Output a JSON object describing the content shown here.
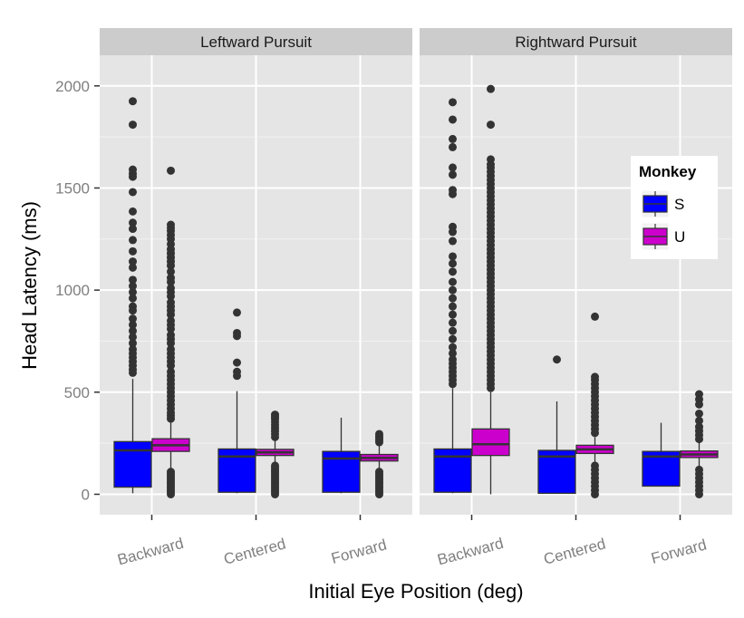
{
  "chart_data": {
    "type": "boxplot",
    "xlabel": "Initial Eye Position (deg)",
    "ylabel": "Head Latency (ms)",
    "ylim": [
      -100,
      2150
    ],
    "yticks": [
      0,
      500,
      1000,
      1500,
      2000
    ],
    "grid": true,
    "categories": [
      "Backward",
      "Centered",
      "Forward"
    ],
    "legend": {
      "title": "Monkey",
      "placement": "inside right panel, upper-right",
      "entries": [
        {
          "name": "S",
          "color": "#0000FF"
        },
        {
          "name": "U",
          "color": "#CC00CC"
        }
      ]
    },
    "panels": [
      {
        "title": "Leftward Pursuit",
        "boxes": [
          {
            "category": "Backward",
            "series": "S",
            "min": 5,
            "q1": 35,
            "median": 215,
            "q3": 258,
            "max": 565,
            "outliers": [
              1925,
              1810,
              1590,
              1570,
              1555,
              1480,
              1385,
              1330,
              1300,
              1245,
              1190,
              1140,
              1110,
              1050,
              1020,
              990,
              960,
              920,
              900,
              860,
              830,
              800,
              770,
              740,
              710,
              690,
              670,
              650,
              630,
              610,
              595
            ]
          },
          {
            "category": "Backward",
            "series": "U",
            "min": 120,
            "q1": 210,
            "median": 240,
            "q3": 272,
            "max": 360,
            "outliers": [
              1585,
              1320,
              1305,
              1290,
              1270,
              1250,
              1225,
              1200,
              1180,
              1160,
              1140,
              1120,
              1090,
              1060,
              1040,
              1010,
              990,
              970,
              940,
              920,
              900,
              880,
              850,
              830,
              810,
              780,
              760,
              740,
              710,
              690,
              670,
              650,
              630,
              600,
              580,
              560,
              540,
              520,
              500,
              480,
              460,
              440,
              420,
              400,
              385,
              370,
              110,
              100,
              90,
              80,
              70,
              60,
              50,
              40,
              30,
              20,
              10,
              0
            ]
          },
          {
            "category": "Centered",
            "series": "S",
            "min": 5,
            "q1": 10,
            "median": 185,
            "q3": 222,
            "max": 505,
            "outliers": [
              890,
              790,
              775,
              645,
              600,
              580
            ]
          },
          {
            "category": "Centered",
            "series": "U",
            "min": 150,
            "q1": 190,
            "median": 205,
            "q3": 220,
            "max": 265,
            "outliers": [
              390,
              380,
              370,
              355,
              340,
              325,
              310,
              295,
              280,
              140,
              130,
              120,
              110,
              100,
              90,
              80,
              70,
              60,
              50,
              40,
              30,
              20,
              10,
              0
            ]
          },
          {
            "category": "Forward",
            "series": "S",
            "min": 5,
            "q1": 10,
            "median": 175,
            "q3": 210,
            "max": 375,
            "outliers": []
          },
          {
            "category": "Forward",
            "series": "U",
            "min": 120,
            "q1": 163,
            "median": 178,
            "q3": 195,
            "max": 240,
            "outliers": [
              295,
              285,
              275,
              265,
              255,
              110,
              100,
              90,
              80,
              70,
              60,
              50,
              40,
              30,
              20,
              10,
              0
            ]
          }
        ]
      },
      {
        "title": "Rightward Pursuit",
        "boxes": [
          {
            "category": "Backward",
            "series": "S",
            "min": 5,
            "q1": 10,
            "median": 185,
            "q3": 222,
            "max": 520,
            "outliers": [
              1920,
              1835,
              1740,
              1700,
              1600,
              1565,
              1490,
              1470,
              1310,
              1285,
              1240,
              1165,
              1130,
              1090,
              1040,
              1000,
              960,
              920,
              880,
              840,
              800,
              760,
              720,
              690,
              660,
              640,
              620,
              600,
              580,
              560,
              540
            ]
          },
          {
            "category": "Backward",
            "series": "U",
            "min": 0,
            "q1": 190,
            "median": 245,
            "q3": 320,
            "max": 500,
            "outliers": [
              1985,
              1810,
              1640,
              1615,
              1600,
              1580,
              1560,
              1540,
              1520,
              1500,
              1480,
              1460,
              1440,
              1420,
              1400,
              1380,
              1360,
              1340,
              1320,
              1300,
              1280,
              1260,
              1240,
              1220,
              1200,
              1180,
              1160,
              1140,
              1120,
              1100,
              1080,
              1060,
              1040,
              1020,
              1000,
              980,
              960,
              940,
              920,
              900,
              880,
              860,
              840,
              820,
              800,
              780,
              760,
              740,
              720,
              700,
              680,
              660,
              640,
              620,
              600,
              580,
              560,
              540,
              520
            ]
          },
          {
            "category": "Centered",
            "series": "S",
            "min": 5,
            "q1": 5,
            "median": 185,
            "q3": 215,
            "max": 455,
            "outliers": [
              660
            ]
          },
          {
            "category": "Centered",
            "series": "U",
            "min": 150,
            "q1": 200,
            "median": 220,
            "q3": 240,
            "max": 280,
            "outliers": [
              870,
              575,
              560,
              540,
              520,
              500,
              480,
              460,
              440,
              420,
              400,
              380,
              360,
              340,
              320,
              300,
              140,
              120,
              100,
              80,
              60,
              40,
              20,
              0
            ]
          },
          {
            "category": "Forward",
            "series": "S",
            "min": 40,
            "q1": 40,
            "median": 185,
            "q3": 210,
            "max": 350,
            "outliers": []
          },
          {
            "category": "Forward",
            "series": "U",
            "min": 130,
            "q1": 180,
            "median": 195,
            "q3": 212,
            "max": 260,
            "outliers": [
              490,
              465,
              440,
              395,
              360,
              330,
              310,
              290,
              270,
              120,
              100,
              80,
              60,
              40,
              20,
              0
            ]
          }
        ]
      }
    ]
  }
}
